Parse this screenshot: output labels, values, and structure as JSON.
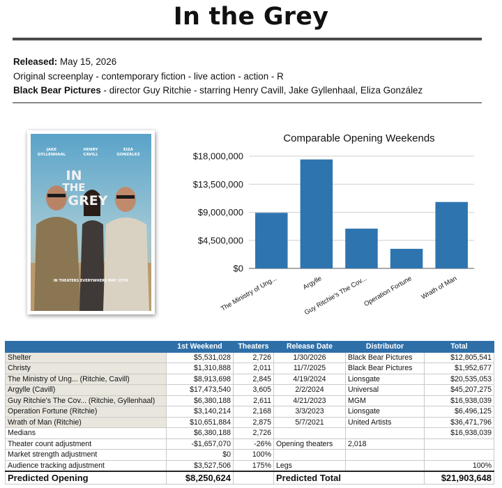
{
  "title": "In the Grey",
  "info": {
    "released_label": "Released:",
    "released_value": "May 15, 2026",
    "line2": "Original screenplay - contemporary fiction - live action - action - R",
    "distributor": "Black Bear Pictures",
    "line3_rest": " - director Guy Ritchie - starring Henry Cavill, Jake Gyllenhaal, Eliza González"
  },
  "poster": {
    "credits": [
      "JAKE",
      "GYLLENHAAL",
      "HENRY",
      "CAVILL",
      "EIZA",
      "GONZÁLEZ"
    ],
    "title_lines": [
      "IN",
      "THE",
      "GREY"
    ],
    "tagline": "IN THEATERS EVERYWHERE MAY 15TH"
  },
  "chart_data": {
    "type": "bar",
    "title": "Comparable Opening Weekends",
    "categories": [
      "The Ministry of Ung...",
      "Argylle",
      "Guy Ritchie's The Cov...",
      "Operation Fortune",
      "Wrath of Man"
    ],
    "values": [
      8913698,
      17473540,
      6380188,
      3140214,
      10651884
    ],
    "ylim": [
      0,
      18000000
    ],
    "yticks": [
      "$0",
      "$4,500,000",
      "$9,000,000",
      "$13,500,000",
      "$18,000,000"
    ],
    "grid": true,
    "bar_color": "#2e75b0"
  },
  "table": {
    "headers": [
      "",
      "1st Weekend",
      "Theaters",
      "Release Date",
      "Distributor",
      "Total"
    ],
    "rows": [
      [
        "Shelter",
        "$5,531,028",
        "2,726",
        "1/30/2026",
        "Black Bear Pictures",
        "$12,805,541"
      ],
      [
        "Christy",
        "$1,310,888",
        "2,011",
        "11/7/2025",
        "Black Bear Pictures",
        "$1,952,677"
      ],
      [
        "The Ministry of Ung... (Ritchie, Cavill)",
        "$8,913,698",
        "2,845",
        "4/19/2024",
        "Lionsgate",
        "$20,535,053"
      ],
      [
        "Argylle (Cavill)",
        "$17,473,540",
        "3,605",
        "2/2/2024",
        "Universal",
        "$45,207,275"
      ],
      [
        "Guy Ritchie's The Cov... (Ritchie, Gyllenhaal)",
        "$6,380,188",
        "2,611",
        "4/21/2023",
        "MGM",
        "$16,938,039"
      ],
      [
        "Operation Fortune (Ritchie)",
        "$3,140,214",
        "2,168",
        "3/3/2023",
        "Lionsgate",
        "$6,496,125"
      ],
      [
        "Wrath of Man (Ritchie)",
        "$10,651,884",
        "2,875",
        "5/7/2021",
        "United Artists",
        "$36,471,796"
      ]
    ],
    "medians": {
      "label": "Medians",
      "weekend": "$6,380,188",
      "theaters": "2,726",
      "total": "$16,938,039"
    },
    "theater_adj": {
      "label": "Theater count adjustment",
      "value": "-$1,657,070",
      "pct": "-26%",
      "opening_label": "Opening theaters",
      "opening_value": "2,018"
    },
    "market_adj": {
      "label": "Market strength adjustment",
      "value": "$0",
      "pct": "100%"
    },
    "audience_adj": {
      "label": "Audience tracking adjustment",
      "value": "$3,527,506",
      "pct": "175%",
      "legs_label": "Legs",
      "legs_value": "100%"
    },
    "predicted": {
      "opening_label": "Predicted Opening",
      "opening_value": "$8,250,624",
      "total_label": "Predicted Total",
      "total_value": "$21,903,648"
    }
  }
}
